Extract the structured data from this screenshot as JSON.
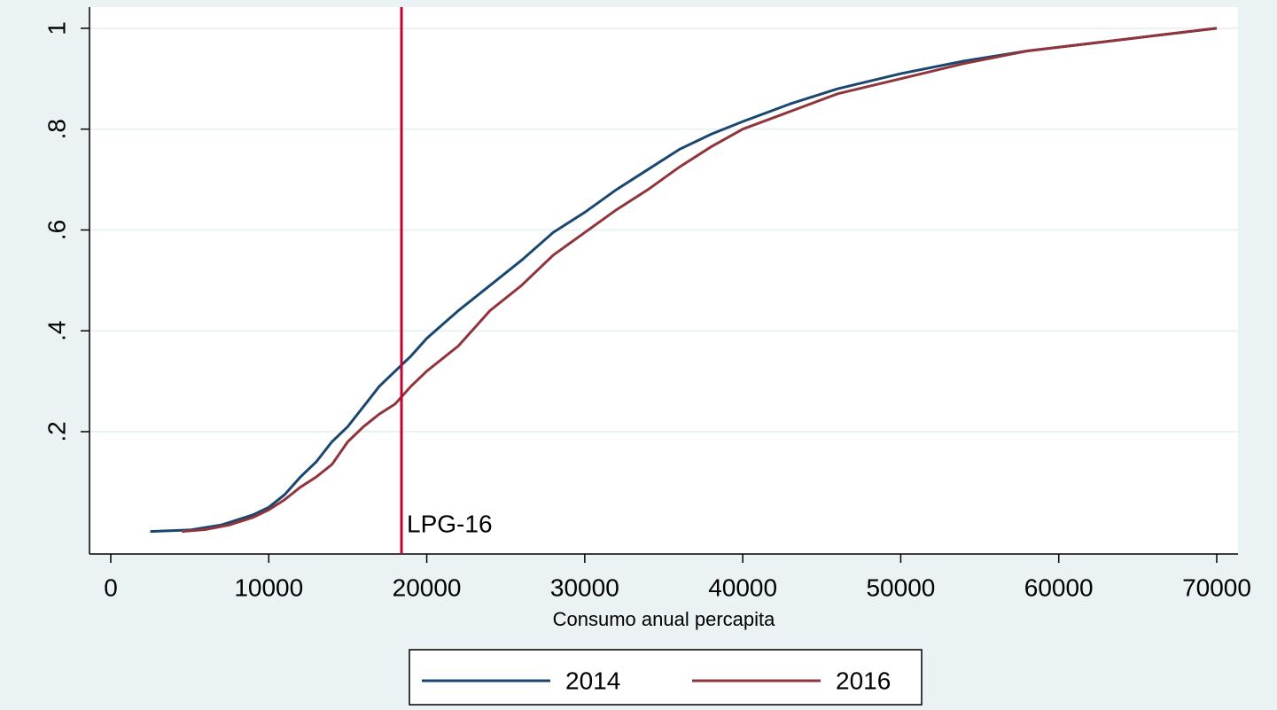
{
  "chart_data": {
    "type": "line",
    "x_label": "Consumo anual percapita",
    "xlim": [
      -1346,
      71346
    ],
    "ylim": [
      -0.0426,
      1.042
    ],
    "xticks": [
      0,
      10000,
      20000,
      30000,
      40000,
      50000,
      60000,
      70000
    ],
    "yticks": [
      {
        "value": 0.2,
        "label": ".2"
      },
      {
        "value": 0.4,
        "label": ".4"
      },
      {
        "value": 0.6,
        "label": ".6"
      },
      {
        "value": 0.8,
        "label": ".8"
      },
      1
    ],
    "grid": true,
    "legend": "bottom",
    "vline": {
      "value": 18400,
      "label": "LPG-16",
      "color": "#c10534"
    },
    "series": [
      {
        "name": "2014",
        "color": "#1a476f",
        "x": [
          2500,
          5000,
          7000,
          9000,
          10000,
          11000,
          12000,
          13000,
          14000,
          15000,
          16000,
          17000,
          18000,
          19000,
          20000,
          22000,
          24000,
          26000,
          28000,
          30000,
          32000,
          34000,
          36000,
          38000,
          40000,
          43000,
          46000,
          50000,
          54000,
          58000,
          62000,
          66000,
          70000
        ],
        "values": [
          0.002,
          0.005,
          0.015,
          0.035,
          0.05,
          0.075,
          0.11,
          0.14,
          0.18,
          0.21,
          0.25,
          0.29,
          0.32,
          0.35,
          0.385,
          0.44,
          0.49,
          0.54,
          0.595,
          0.635,
          0.68,
          0.72,
          0.76,
          0.79,
          0.815,
          0.85,
          0.88,
          0.91,
          0.935,
          0.955,
          0.97,
          0.985,
          1.0
        ]
      },
      {
        "name": "2016",
        "color": "#90353b",
        "x": [
          4500,
          6000,
          7500,
          9000,
          10000,
          11000,
          12000,
          13000,
          14000,
          15000,
          16000,
          17000,
          18000,
          19000,
          20000,
          22000,
          24000,
          26000,
          28000,
          30000,
          32000,
          34000,
          36000,
          38000,
          40000,
          43000,
          46000,
          50000,
          54000,
          58000,
          62000,
          66000,
          70000
        ],
        "values": [
          0.002,
          0.006,
          0.015,
          0.03,
          0.045,
          0.065,
          0.09,
          0.11,
          0.135,
          0.18,
          0.21,
          0.235,
          0.255,
          0.29,
          0.32,
          0.37,
          0.44,
          0.49,
          0.55,
          0.595,
          0.64,
          0.68,
          0.725,
          0.765,
          0.8,
          0.835,
          0.87,
          0.9,
          0.93,
          0.955,
          0.97,
          0.985,
          1.0
        ]
      }
    ]
  }
}
